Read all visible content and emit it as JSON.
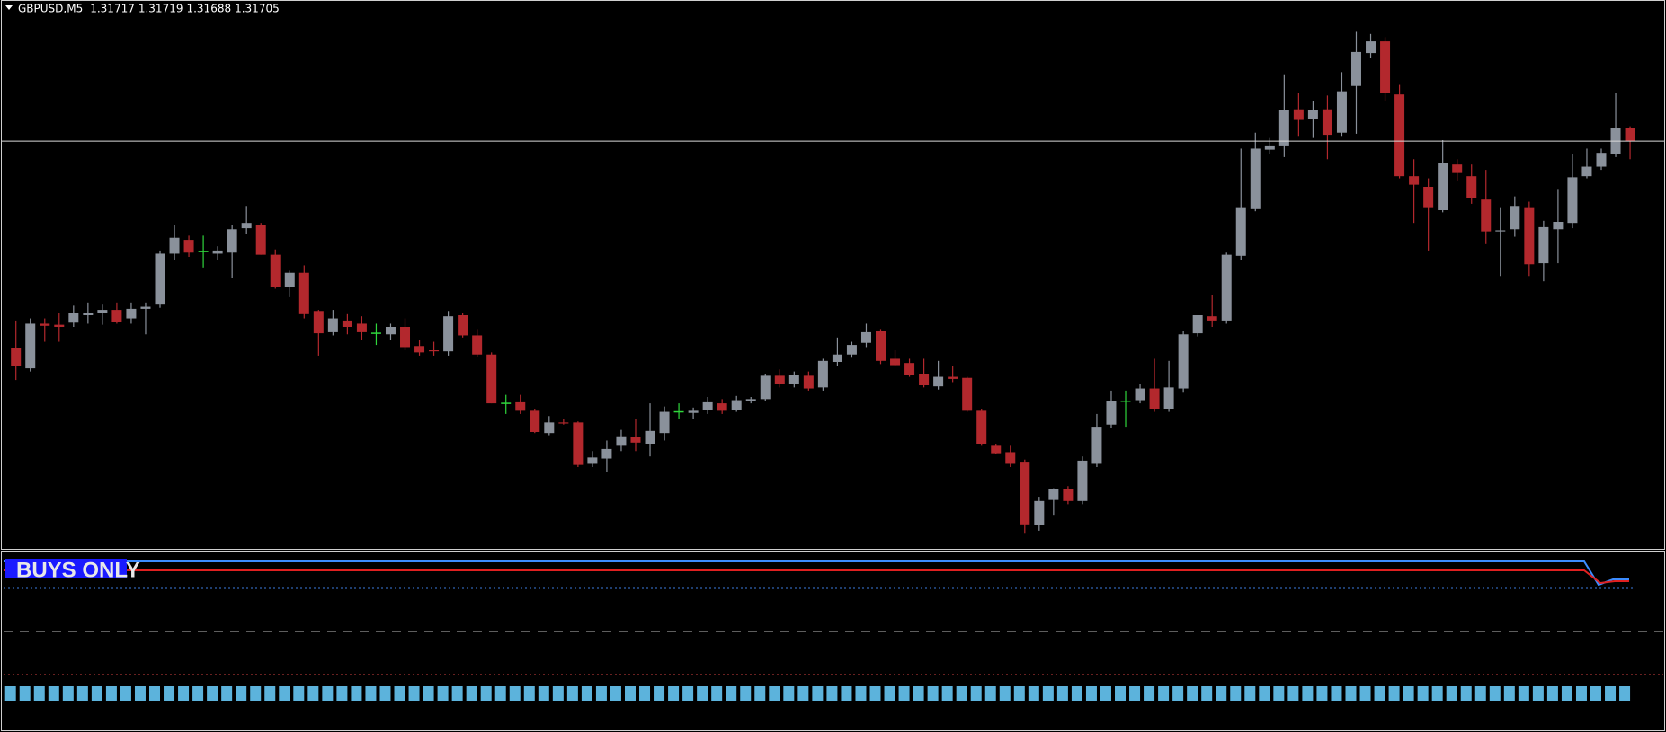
{
  "chart_data": {
    "type": "candlestick",
    "title": "GBPUSD,M5",
    "header_prices": [
      1.31717,
      1.31719,
      1.31688,
      1.31705
    ],
    "ylim": [
      1.31321,
      1.31838
    ],
    "colors": {
      "up": "#8a919b",
      "down": "#b3282d",
      "doji": "#2fd63c",
      "bid_line": "#d9d9d9"
    },
    "indicator_label": "BUYS ONLY",
    "candles": [
      [
        1.3151,
        1.31536,
        1.3148,
        1.31493
      ],
      [
        1.31491,
        1.31538,
        1.31488,
        1.31533
      ],
      [
        1.31533,
        1.31538,
        1.31516,
        1.31531
      ],
      [
        1.31532,
        1.31543,
        1.31516,
        1.3153
      ],
      [
        1.31534,
        1.3155,
        1.3153,
        1.31543
      ],
      [
        1.31541,
        1.31553,
        1.31533,
        1.31543
      ],
      [
        1.31543,
        1.31551,
        1.31532,
        1.31546
      ],
      [
        1.31546,
        1.31553,
        1.31533,
        1.31535
      ],
      [
        1.31538,
        1.31553,
        1.31533,
        1.31547
      ],
      [
        1.31547,
        1.31553,
        1.31523,
        1.31549
      ],
      [
        1.31551,
        1.31602,
        1.31548,
        1.31599
      ],
      [
        1.31599,
        1.31626,
        1.31593,
        1.31614
      ],
      [
        1.31612,
        1.31616,
        1.31596,
        1.316
      ],
      [
        1.31601,
        1.31616,
        1.31586,
        1.31601
      ],
      [
        1.31599,
        1.31606,
        1.31593,
        1.31602
      ],
      [
        1.316,
        1.31626,
        1.31576,
        1.31622
      ],
      [
        1.31623,
        1.31644,
        1.31618,
        1.31628
      ],
      [
        1.31626,
        1.31628,
        1.31598,
        1.31598
      ],
      [
        1.31598,
        1.31603,
        1.31566,
        1.31568
      ],
      [
        1.31568,
        1.31583,
        1.31558,
        1.31581
      ],
      [
        1.31581,
        1.31588,
        1.31538,
        1.31542
      ],
      [
        1.31545,
        1.31546,
        1.31503,
        1.31524
      ],
      [
        1.31525,
        1.31546,
        1.31522,
        1.31538
      ],
      [
        1.31536,
        1.31542,
        1.31523,
        1.3153
      ],
      [
        1.31533,
        1.3154,
        1.31518,
        1.31525
      ],
      [
        1.31524,
        1.31533,
        1.31513,
        1.31524
      ],
      [
        1.31523,
        1.31533,
        1.31518,
        1.3153
      ],
      [
        1.3153,
        1.31538,
        1.31508,
        1.31511
      ],
      [
        1.31512,
        1.31518,
        1.31503,
        1.31506
      ],
      [
        1.31508,
        1.31516,
        1.31503,
        1.31507
      ],
      [
        1.31507,
        1.31545,
        1.31503,
        1.3154
      ],
      [
        1.31541,
        1.31543,
        1.3152,
        1.31522
      ],
      [
        1.31522,
        1.31528,
        1.31502,
        1.31504
      ],
      [
        1.31504,
        1.31506,
        1.31458,
        1.31458
      ],
      [
        1.31458,
        1.31466,
        1.31448,
        1.31458
      ],
      [
        1.31459,
        1.31466,
        1.31448,
        1.31451
      ],
      [
        1.31451,
        1.31453,
        1.3143,
        1.31431
      ],
      [
        1.3143,
        1.31446,
        1.31428,
        1.3144
      ],
      [
        1.3144,
        1.31443,
        1.31438,
        1.31439
      ],
      [
        1.3144,
        1.31441,
        1.31398,
        1.314
      ],
      [
        1.31401,
        1.31413,
        1.31398,
        1.31407
      ],
      [
        1.31406,
        1.31423,
        1.31393,
        1.31415
      ],
      [
        1.31418,
        1.31433,
        1.31413,
        1.31427
      ],
      [
        1.31426,
        1.31443,
        1.31413,
        1.31421
      ],
      [
        1.3142,
        1.31458,
        1.31408,
        1.31432
      ],
      [
        1.3143,
        1.31455,
        1.31423,
        1.3145
      ],
      [
        1.3145,
        1.31458,
        1.31443,
        1.3145
      ],
      [
        1.31449,
        1.31454,
        1.31443,
        1.31451
      ],
      [
        1.31452,
        1.31464,
        1.31448,
        1.31459
      ],
      [
        1.31458,
        1.31462,
        1.31448,
        1.31451
      ],
      [
        1.31452,
        1.31465,
        1.3145,
        1.31461
      ],
      [
        1.3146,
        1.31464,
        1.31458,
        1.31462
      ],
      [
        1.31462,
        1.31486,
        1.3146,
        1.31484
      ],
      [
        1.31484,
        1.3149,
        1.31473,
        1.31476
      ],
      [
        1.31476,
        1.31488,
        1.31473,
        1.31485
      ],
      [
        1.31484,
        1.31488,
        1.3147,
        1.31472
      ],
      [
        1.31473,
        1.315,
        1.3147,
        1.31498
      ],
      [
        1.31497,
        1.3152,
        1.31493,
        1.31504
      ],
      [
        1.31504,
        1.31516,
        1.31501,
        1.31513
      ],
      [
        1.31515,
        1.31533,
        1.31511,
        1.31525
      ],
      [
        1.31526,
        1.31528,
        1.31495,
        1.31498
      ],
      [
        1.315,
        1.31508,
        1.31493,
        1.31494
      ],
      [
        1.31496,
        1.315,
        1.31483,
        1.31485
      ],
      [
        1.31486,
        1.315,
        1.31473,
        1.31475
      ],
      [
        1.31474,
        1.31498,
        1.31471,
        1.31483
      ],
      [
        1.31483,
        1.31493,
        1.31478,
        1.31481
      ],
      [
        1.31482,
        1.31483,
        1.3145,
        1.31451
      ],
      [
        1.31451,
        1.31453,
        1.31418,
        1.3142
      ],
      [
        1.31418,
        1.3142,
        1.3141,
        1.31411
      ],
      [
        1.31412,
        1.31418,
        1.31398,
        1.31401
      ],
      [
        1.31403,
        1.31405,
        1.31336,
        1.31344
      ],
      [
        1.31343,
        1.3137,
        1.31338,
        1.31366
      ],
      [
        1.31367,
        1.31378,
        1.31353,
        1.31377
      ],
      [
        1.31377,
        1.3138,
        1.31363,
        1.31366
      ],
      [
        1.31366,
        1.31408,
        1.31363,
        1.31404
      ],
      [
        1.31401,
        1.31448,
        1.31398,
        1.31436
      ],
      [
        1.31438,
        1.3147,
        1.31435,
        1.3146
      ],
      [
        1.3146,
        1.3147,
        1.31436,
        1.3146
      ],
      [
        1.31461,
        1.31476,
        1.31458,
        1.31472
      ],
      [
        1.31472,
        1.315,
        1.3145,
        1.31453
      ],
      [
        1.31453,
        1.31498,
        1.3145,
        1.31473
      ],
      [
        1.31472,
        1.31526,
        1.31468,
        1.31523
      ],
      [
        1.31524,
        1.31541,
        1.31521,
        1.31541
      ],
      [
        1.3154,
        1.3156,
        1.3153,
        1.31536
      ],
      [
        1.31536,
        1.316,
        1.31533,
        1.31598
      ],
      [
        1.31597,
        1.31698,
        1.31593,
        1.31642
      ],
      [
        1.31641,
        1.31713,
        1.31639,
        1.31698
      ],
      [
        1.31697,
        1.31708,
        1.31693,
        1.31701
      ],
      [
        1.31701,
        1.31768,
        1.3169,
        1.31734
      ],
      [
        1.31735,
        1.3175,
        1.3171,
        1.31725
      ],
      [
        1.31726,
        1.31743,
        1.31708,
        1.31734
      ],
      [
        1.31735,
        1.31748,
        1.31688,
        1.31711
      ],
      [
        1.31713,
        1.3177,
        1.3171,
        1.31752
      ],
      [
        1.31757,
        1.31808,
        1.31712,
        1.31789
      ],
      [
        1.31788,
        1.31806,
        1.31783,
        1.31799
      ],
      [
        1.31799,
        1.31803,
        1.31743,
        1.3175
      ],
      [
        1.31749,
        1.31758,
        1.3167,
        1.31672
      ],
      [
        1.31672,
        1.31688,
        1.31628,
        1.31664
      ],
      [
        1.31662,
        1.3167,
        1.31602,
        1.31642
      ],
      [
        1.3164,
        1.31706,
        1.31638,
        1.31684
      ],
      [
        1.31683,
        1.31688,
        1.31668,
        1.31675
      ],
      [
        1.31672,
        1.31683,
        1.31646,
        1.31651
      ],
      [
        1.3165,
        1.31678,
        1.31608,
        1.3162
      ],
      [
        1.3162,
        1.31642,
        1.31578,
        1.31621
      ],
      [
        1.31622,
        1.31653,
        1.31615,
        1.31644
      ],
      [
        1.31642,
        1.31648,
        1.31578,
        1.31589
      ],
      [
        1.3159,
        1.3163,
        1.31573,
        1.31624
      ],
      [
        1.31622,
        1.3166,
        1.3159,
        1.31629
      ],
      [
        1.31628,
        1.31693,
        1.31623,
        1.31671
      ],
      [
        1.31672,
        1.31698,
        1.3167,
        1.31681
      ],
      [
        1.31681,
        1.31698,
        1.31678,
        1.31694
      ],
      [
        1.31693,
        1.3175,
        1.3169,
        1.31717
      ],
      [
        1.31717,
        1.31719,
        1.31688,
        1.31705
      ]
    ]
  }
}
